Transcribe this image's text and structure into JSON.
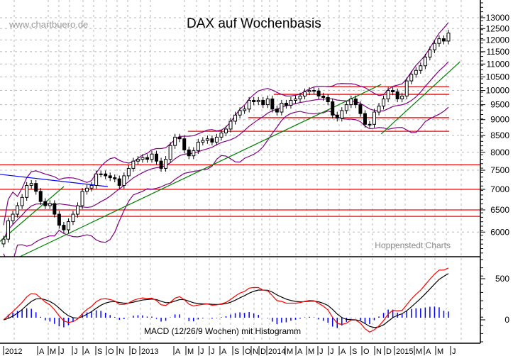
{
  "chart_data": {
    "type": "candlestick",
    "title": "DAX auf Wochenbasis",
    "watermark": "www.chartbuero.de",
    "source_label": "Hoppenstedt Charts",
    "scale": "log",
    "ylim": [
      5490,
      13870
    ],
    "y_ticks": [
      "13000",
      "12500",
      "12000",
      "11500",
      "11000",
      "10500",
      "10000",
      "9500",
      "9000",
      "8500",
      "8000",
      "7500",
      "7000",
      "6500",
      "6000"
    ],
    "y_tick_values": [
      13000,
      12500,
      12000,
      11500,
      11000,
      10500,
      10000,
      9500,
      9000,
      8500,
      8000,
      7500,
      7000,
      6500,
      6000
    ],
    "x_ticks": [
      "2012",
      "A",
      "M",
      "J",
      "J",
      "A",
      "S",
      "O",
      "N",
      "D",
      "2013",
      "A",
      "M",
      "J",
      "J",
      "A",
      "S",
      "O",
      "N",
      "D",
      "2014",
      "M",
      "A",
      "M",
      "J",
      "J",
      "A",
      "S",
      "O",
      "N",
      "D",
      "2015",
      "M",
      "A",
      "M",
      "J"
    ],
    "closes": [
      5850,
      6250,
      6400,
      6600,
      6800,
      7100,
      7150,
      6950,
      6700,
      6600,
      6650,
      6400,
      6150,
      6050,
      6230,
      6400,
      6600,
      6950,
      7030,
      7100,
      7400,
      7400,
      7350,
      7300,
      7270,
      7100,
      7350,
      7550,
      7750,
      7800,
      7850,
      7800,
      7950,
      7750,
      7550,
      7800,
      8200,
      8450,
      8400,
      8070,
      7900,
      8050,
      8300,
      8350,
      8400,
      8300,
      8450,
      8580,
      8700,
      8950,
      9150,
      9300,
      9350,
      9650,
      9600,
      9650,
      9500,
      9700,
      9350,
      9250,
      9550,
      9480,
      9650,
      9700,
      9800,
      9950,
      10000,
      9980,
      9800,
      9750,
      9600,
      9150,
      9050,
      9300,
      9500,
      9700,
      9500,
      9200,
      8850,
      8850,
      9250,
      9450,
      9700,
      10000,
      9950,
      9700,
      9800,
      10350,
      10600,
      10750,
      10930,
      11280,
      11580,
      11850,
      12050,
      11950,
      12300
    ],
    "horizontal_lines": [
      {
        "value": 7650,
        "color": "#ff0000",
        "from_bar": 0
      },
      {
        "value": 7000,
        "color": "#ff0000",
        "from_bar": 0
      },
      {
        "value": 6500,
        "color": "#ff0000",
        "from_bar": 0
      },
      {
        "value": 6350,
        "color": "#ff0000",
        "from_bar": 0
      },
      {
        "value": 10140,
        "color": "#ff0000",
        "from_bar": 69.7
      },
      {
        "value": 9860,
        "color": "#ff0000",
        "from_bar": 58.3
      },
      {
        "value": 9065,
        "color": "#ff0000",
        "from_bar": 52.8
      },
      {
        "value": 8630,
        "color": "#ff0000",
        "from_bar": 39.8
      }
    ],
    "trend_lines": [
      {
        "color": "#008000",
        "from": {
          "bar": 3.5,
          "value": 5490
        },
        "to": {
          "bar": 81.5,
          "value": 10220
        }
      },
      {
        "color": "#008000",
        "from": {
          "bar": -0.8,
          "value": 5800
        },
        "to": {
          "bar": 13,
          "value": 7070
        }
      },
      {
        "color": "#008000",
        "from": {
          "bar": 81.5,
          "value": 8550
        },
        "to": {
          "bar": 98.5,
          "value": 11090
        }
      },
      {
        "color": "#0000ff",
        "from": {
          "bar": -0.8,
          "value": 7390
        },
        "to": {
          "bar": 22.5,
          "value": 7070
        }
      }
    ],
    "bollinger": {
      "color": "#800080",
      "period": 12,
      "stddev": 2
    },
    "macd": {
      "label": "MACD (12/26/9 Wochen) mit Histogramm",
      "y_ticks": [
        "500",
        "0"
      ],
      "y_tick_values": [
        500,
        0
      ],
      "macd_color": "#ff0000",
      "signal_color": "#000000",
      "histogram_color": "#0000ff"
    }
  }
}
